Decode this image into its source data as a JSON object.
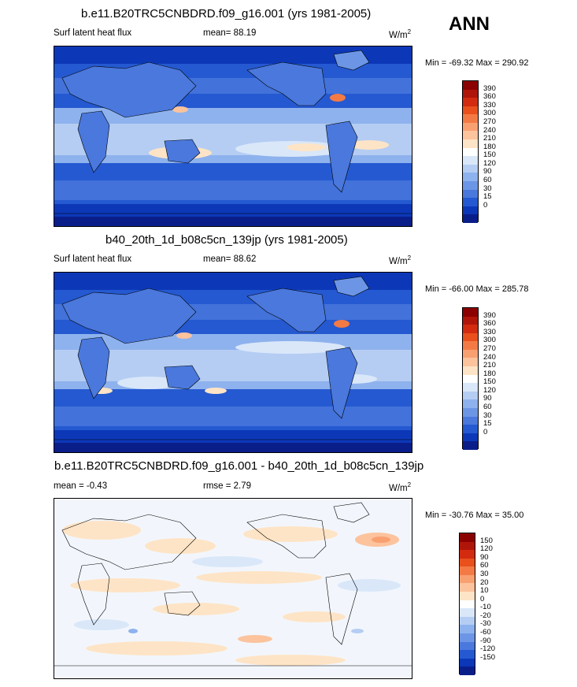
{
  "season": "ANN",
  "panels": [
    {
      "title": "b.e11.B20TRC5CNBDRD.f09_g16.001 (yrs 1981-2005)",
      "left_label": "Surf latent heat flux",
      "center_label": "mean=  88.19",
      "units": "W/m",
      "units_sup": "2",
      "minmax": "Min = -69.32 Max = 290.92",
      "levels": [
        "390",
        "360",
        "330",
        "300",
        "270",
        "240",
        "210",
        "180",
        "150",
        "120",
        "90",
        "60",
        "30",
        "15",
        "0"
      ],
      "colors": [
        "#8b0000",
        "#b01509",
        "#d22b10",
        "#e9501c",
        "#f47a45",
        "#f9a071",
        "#fcc39d",
        "#fee4c6",
        "#ffffff",
        "#d9e7f9",
        "#b5cdf3",
        "#8eb2ed",
        "#6c96e5",
        "#4a78dc",
        "#2559d1",
        "#0c38b8",
        "#0a1e8a"
      ]
    },
    {
      "title": "b40_20th_1d_b08c5cn_139jp (yrs 1981-2005)",
      "left_label": "Surf latent heat flux",
      "center_label": "mean=  88.62",
      "units": "W/m",
      "units_sup": "2",
      "minmax": "Min = -66.00 Max = 285.78",
      "levels": [
        "390",
        "360",
        "330",
        "300",
        "270",
        "240",
        "210",
        "180",
        "150",
        "120",
        "90",
        "60",
        "30",
        "15",
        "0"
      ],
      "colors": [
        "#8b0000",
        "#b01509",
        "#d22b10",
        "#e9501c",
        "#f47a45",
        "#f9a071",
        "#fcc39d",
        "#fee4c6",
        "#ffffff",
        "#d9e7f9",
        "#b5cdf3",
        "#8eb2ed",
        "#6c96e5",
        "#4a78dc",
        "#2559d1",
        "#0c38b8",
        "#0a1e8a"
      ]
    },
    {
      "title": "b.e11.B20TRC5CNBDRD.f09_g16.001 - b40_20th_1d_b08c5cn_139jp",
      "left_label": "mean =  -0.43",
      "center_label": "rmse =   2.79",
      "units": "W/m",
      "units_sup": "2",
      "minmax": "Min = -30.76 Max =  35.00",
      "levels": [
        "150",
        "120",
        "90",
        "60",
        "30",
        "20",
        "10",
        "0",
        "-10",
        "-20",
        "-30",
        "-60",
        "-90",
        "-120",
        "-150"
      ],
      "colors": [
        "#8b0000",
        "#b01509",
        "#d22b10",
        "#e9501c",
        "#f47a45",
        "#f9a071",
        "#fcc39d",
        "#fee4c6",
        "#ffffff",
        "#d9e7f9",
        "#b5cdf3",
        "#8eb2ed",
        "#6c96e5",
        "#4a78dc",
        "#2559d1",
        "#0c38b8",
        "#0a1e8a"
      ]
    }
  ]
}
